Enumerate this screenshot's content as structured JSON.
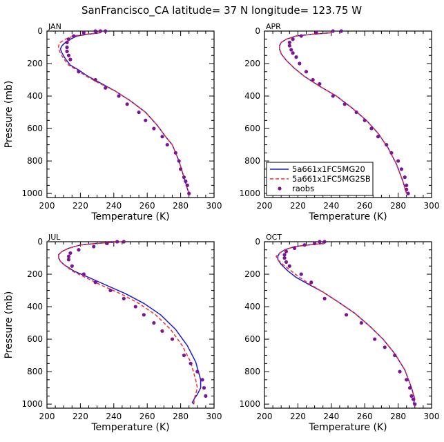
{
  "title": "SanFrancisco_CA  latitude= 37 N longitude= 123.75 W",
  "colors": {
    "model1": "#1a1ad6",
    "model2": "#ff2a2a",
    "obs": "#7a1596",
    "axis": "#000000"
  },
  "chart_data": [
    {
      "type": "line",
      "panel": "JAN",
      "xlabel": "Temperature (K)",
      "ylabel": "Pressure (mb)",
      "xlim": [
        200,
        300
      ],
      "ylim": [
        0,
        1025
      ],
      "xticks": [
        "200",
        "220",
        "240",
        "260",
        "280",
        "300"
      ],
      "yticks": [
        "0",
        "200",
        "400",
        "600",
        "800",
        "1000"
      ],
      "series": [
        {
          "name": "5a661x1FC5MG20",
          "style": "solid",
          "x": [
            232,
            224,
            218,
            214,
            211,
            209,
            208,
            209,
            211,
            214,
            219,
            224,
            232,
            241,
            250,
            259,
            266,
            271,
            275,
            279,
            282,
            284,
            285
          ],
          "y": [
            10,
            20,
            30,
            50,
            70,
            90,
            110,
            135,
            170,
            210,
            240,
            275,
            320,
            370,
            430,
            500,
            580,
            650,
            700,
            800,
            900,
            970,
            1000
          ]
        },
        {
          "name": "5a661x1FC5MG2SB",
          "style": "dashed",
          "x": [
            232,
            223,
            216,
            211,
            208,
            207,
            207,
            208,
            210,
            213,
            218,
            223,
            231,
            241,
            250,
            259,
            266,
            271,
            275,
            279,
            282,
            284,
            285
          ],
          "y": [
            10,
            20,
            30,
            50,
            70,
            90,
            110,
            135,
            170,
            210,
            240,
            275,
            320,
            370,
            430,
            500,
            580,
            650,
            700,
            800,
            900,
            970,
            1000
          ]
        },
        {
          "name": "raobs",
          "style": "points",
          "x": [
            235,
            232,
            229,
            222,
            216,
            213,
            212,
            212,
            212,
            213,
            214,
            219,
            229,
            235,
            243,
            248,
            255,
            259,
            264,
            269,
            272,
            277,
            279,
            280,
            282,
            283,
            284,
            285
          ],
          "y": [
            0,
            0,
            0,
            10,
            30,
            50,
            70,
            100,
            125,
            150,
            175,
            250,
            300,
            350,
            400,
            450,
            500,
            550,
            600,
            650,
            700,
            750,
            800,
            850,
            900,
            925,
            950,
            1000
          ]
        }
      ]
    },
    {
      "type": "line",
      "panel": "APR",
      "xlabel": "Temperature (K)",
      "ylabel": "",
      "xlim": [
        200,
        300
      ],
      "ylim": [
        0,
        1025
      ],
      "xticks": [
        "200",
        "220",
        "240",
        "260",
        "280",
        "300"
      ],
      "yticks": [
        "0",
        "200",
        "400",
        "600",
        "800",
        "1000"
      ],
      "series": [
        {
          "name": "5a661x1FC5MG20",
          "style": "solid",
          "x": [
            240,
            228,
            219,
            213,
            210,
            209,
            209,
            210,
            213,
            218,
            224,
            233,
            243,
            252,
            261,
            268,
            274,
            279,
            283,
            285
          ],
          "y": [
            10,
            20,
            30,
            50,
            70,
            90,
            110,
            140,
            180,
            230,
            280,
            340,
            400,
            470,
            550,
            630,
            720,
            820,
            930,
            1000
          ]
        },
        {
          "name": "5a661x1FC5MG2SB",
          "style": "dashed",
          "x": [
            240,
            228,
            219,
            213,
            210,
            209,
            209,
            210,
            213,
            218,
            224,
            233,
            243,
            252,
            261,
            268,
            274,
            279,
            283,
            285
          ],
          "y": [
            10,
            20,
            30,
            50,
            70,
            90,
            110,
            140,
            180,
            230,
            280,
            340,
            400,
            470,
            550,
            630,
            720,
            820,
            930,
            1000
          ]
        },
        {
          "name": "raobs",
          "style": "points",
          "x": [
            246,
            241,
            231,
            222,
            217,
            215,
            215,
            216,
            217,
            219,
            221,
            225,
            229,
            233,
            241,
            248,
            255,
            260,
            264,
            268,
            273,
            276,
            280,
            282,
            284,
            285,
            285,
            286
          ],
          "y": [
            0,
            0,
            10,
            30,
            50,
            70,
            90,
            115,
            135,
            160,
            200,
            250,
            300,
            325,
            400,
            450,
            500,
            550,
            600,
            650,
            700,
            750,
            800,
            850,
            900,
            950,
            975,
            1000
          ]
        }
      ]
    },
    {
      "type": "line",
      "panel": "JUL",
      "xlabel": "Temperature (K)",
      "ylabel": "Pressure (mb)",
      "xlim": [
        200,
        300
      ],
      "ylim": [
        0,
        1025
      ],
      "xticks": [
        "200",
        "220",
        "240",
        "260",
        "280",
        "300"
      ],
      "yticks": [
        "0",
        "200",
        "400",
        "600",
        "800",
        "1000"
      ],
      "series": [
        {
          "name": "5a661x1FC5MG20",
          "style": "solid",
          "x": [
            245,
            230,
            220,
            213,
            209,
            207,
            207,
            208,
            210,
            216,
            225,
            236,
            247,
            258,
            268,
            277,
            284,
            289,
            292,
            292,
            290,
            288,
            287,
            288
          ],
          "y": [
            0,
            10,
            20,
            40,
            60,
            80,
            100,
            120,
            140,
            180,
            220,
            270,
            320,
            380,
            450,
            540,
            640,
            740,
            850,
            900,
            940,
            970,
            990,
            1000
          ]
        },
        {
          "name": "5a661x1FC5MG2SB",
          "style": "dashed",
          "x": [
            245,
            230,
            220,
            213,
            209,
            207,
            207,
            208,
            210,
            215,
            223,
            233,
            244,
            255,
            265,
            274,
            281,
            286,
            289,
            290,
            289,
            288,
            288
          ],
          "y": [
            0,
            10,
            20,
            40,
            60,
            80,
            100,
            120,
            140,
            180,
            220,
            270,
            320,
            380,
            450,
            540,
            640,
            740,
            850,
            900,
            940,
            970,
            1000
          ]
        },
        {
          "name": "raobs",
          "style": "points",
          "x": [
            246,
            242,
            236,
            228,
            219,
            214,
            213,
            213,
            215,
            222,
            229,
            238,
            246,
            253,
            258,
            264,
            269,
            275,
            282,
            286,
            290,
            293,
            294,
            295
          ],
          "y": [
            0,
            0,
            10,
            30,
            50,
            70,
            90,
            110,
            150,
            200,
            250,
            300,
            350,
            400,
            450,
            500,
            550,
            600,
            700,
            750,
            800,
            850,
            900,
            950
          ]
        }
      ]
    },
    {
      "type": "line",
      "panel": "OCT",
      "xlabel": "Temperature (K)",
      "ylabel": "",
      "xlim": [
        200,
        300
      ],
      "ylim": [
        0,
        1025
      ],
      "xticks": [
        "200",
        "220",
        "240",
        "260",
        "280",
        "300"
      ],
      "yticks": [
        "0",
        "200",
        "400",
        "600",
        "800",
        "1000"
      ],
      "series": [
        {
          "name": "5a661x1FC5MG20",
          "style": "solid",
          "x": [
            236,
            226,
            218,
            212,
            209,
            208,
            208,
            210,
            214,
            219,
            226,
            235,
            244,
            254,
            263,
            271,
            278,
            284,
            288,
            290,
            289
          ],
          "y": [
            10,
            20,
            30,
            50,
            70,
            90,
            110,
            140,
            180,
            220,
            260,
            310,
            370,
            440,
            520,
            600,
            690,
            790,
            900,
            970,
            1000
          ]
        },
        {
          "name": "5a661x1FC5MG2SB",
          "style": "dashed",
          "x": [
            236,
            226,
            218,
            212,
            209,
            207,
            208,
            211,
            216,
            221,
            227,
            235,
            244,
            254,
            263,
            271,
            278,
            284,
            288,
            290,
            289
          ],
          "y": [
            10,
            20,
            30,
            50,
            70,
            90,
            110,
            140,
            180,
            220,
            260,
            310,
            370,
            440,
            520,
            600,
            690,
            790,
            900,
            970,
            1000
          ]
        },
        {
          "name": "raobs",
          "style": "points",
          "x": [
            236,
            233,
            230,
            224,
            218,
            213,
            212,
            212,
            213,
            215,
            222,
            228,
            236,
            249,
            258,
            266,
            272,
            278,
            281,
            285,
            287,
            288,
            289,
            290
          ],
          "y": [
            0,
            0,
            10,
            20,
            40,
            60,
            80,
            100,
            125,
            150,
            200,
            250,
            350,
            450,
            500,
            600,
            650,
            700,
            800,
            850,
            900,
            950,
            970,
            1000
          ]
        }
      ]
    }
  ]
}
